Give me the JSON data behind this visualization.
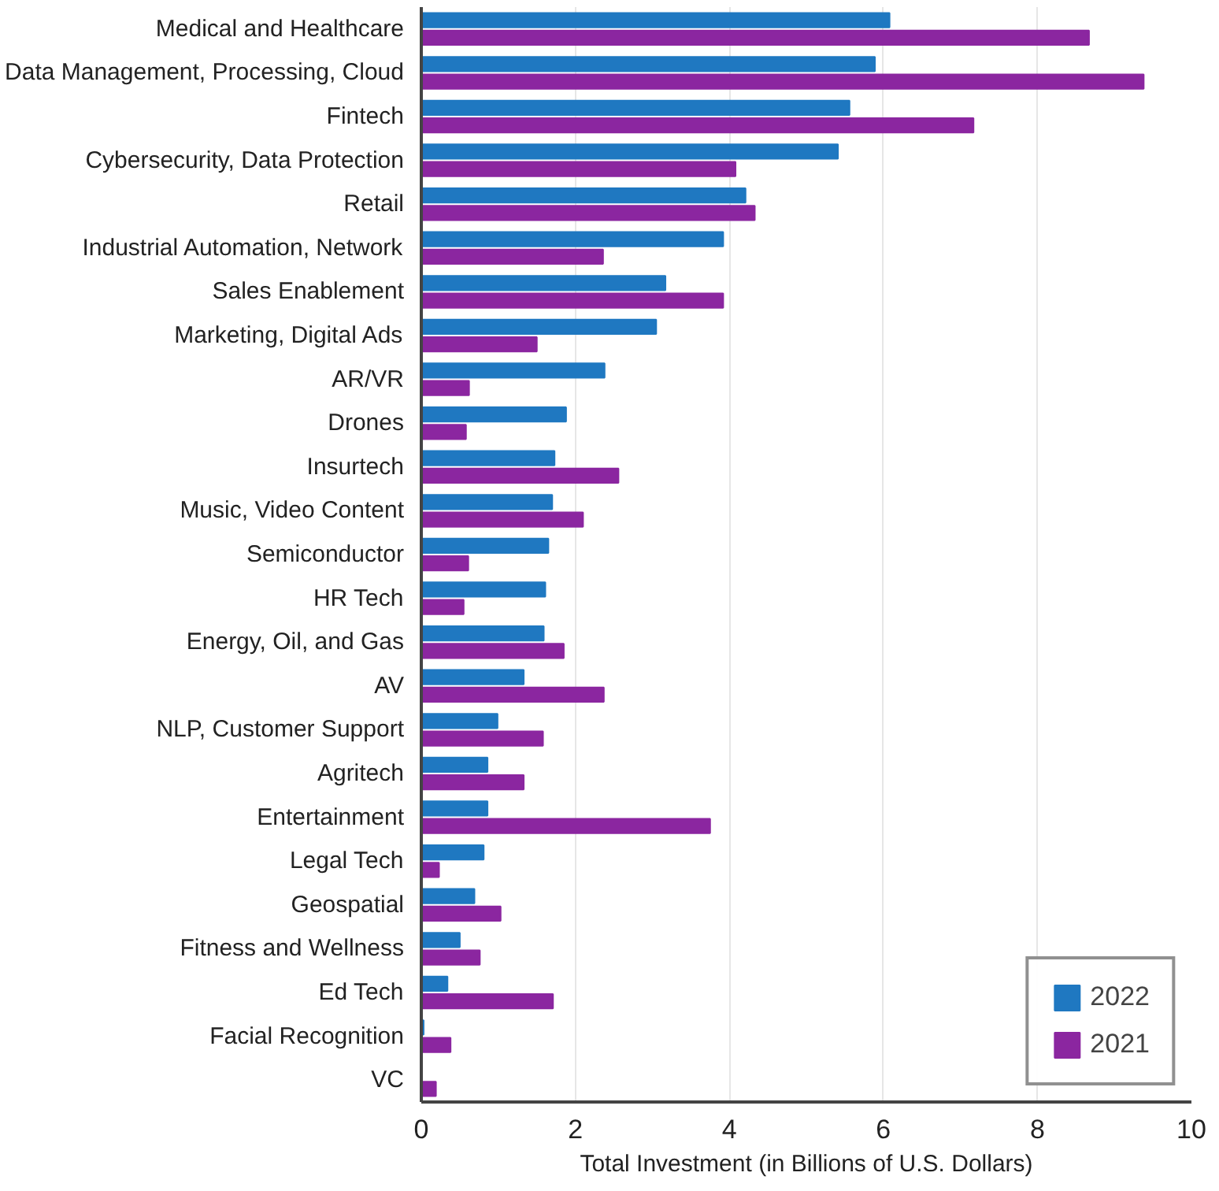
{
  "chart_data": {
    "type": "bar",
    "orientation": "horizontal",
    "xlabel": "Total Investment (in Billions of U.S. Dollars)",
    "categories": [
      "Medical and Healthcare",
      "Data Management, Processing, Cloud",
      "Fintech",
      "Cybersecurity, Data Protection",
      "Retail",
      "Industrial Automation, Network",
      "Sales Enablement",
      "Marketing, Digital Ads",
      "AR/VR",
      "Drones",
      "Insurtech",
      "Music, Video Content",
      "Semiconductor",
      "HR Tech",
      "Energy, Oil, and Gas",
      "AV",
      "NLP, Customer Support",
      "Agritech",
      "Entertainment",
      "Legal Tech",
      "Geospatial",
      "Fitness and Wellness",
      "Ed Tech",
      "Facial Recognition",
      "VC"
    ],
    "series": [
      {
        "name": "2022",
        "color": "#1f78c1",
        "values": [
          6.08,
          5.89,
          5.56,
          5.41,
          4.21,
          3.92,
          3.17,
          3.05,
          2.38,
          1.88,
          1.73,
          1.7,
          1.65,
          1.61,
          1.59,
          1.33,
          0.99,
          0.86,
          0.86,
          0.81,
          0.69,
          0.5,
          0.34,
          0.03,
          0
        ]
      },
      {
        "name": "2021",
        "color": "#8b26a0",
        "values": [
          8.67,
          9.38,
          7.17,
          4.08,
          4.33,
          2.36,
          3.92,
          1.5,
          0.62,
          0.58,
          2.56,
          2.1,
          0.61,
          0.55,
          1.85,
          2.37,
          1.58,
          1.33,
          3.75,
          0.23,
          1.03,
          0.76,
          1.71,
          0.38,
          0.19
        ]
      }
    ],
    "xlim": [
      0,
      10
    ],
    "xticks": [
      0,
      2,
      4,
      6,
      8,
      10
    ],
    "grid": "x",
    "legend": "bottom right"
  }
}
